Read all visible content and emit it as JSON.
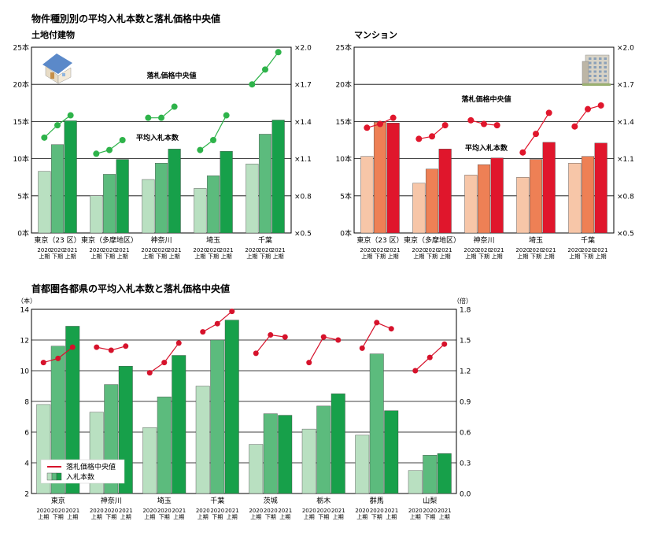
{
  "header": {
    "main_title": "物件種別別の平均入札本数と落札価格中央値",
    "bottom_title": "首都圏各都県の平均入札本数と落札価格中央値"
  },
  "chart_data": [
    {
      "type": "bar",
      "title": "土地付建物",
      "categories": [
        "東京（23 区）",
        "東京（多摩地区）",
        "神奈川",
        "埼玉",
        "千葉"
      ],
      "period_labels": [
        "2020",
        "2020",
        "2021"
      ],
      "period_sublabels": [
        "上期",
        "下期",
        "上期"
      ],
      "left_axis": {
        "unit_suffix": "本",
        "ylim": [
          0,
          25
        ],
        "ticks": [
          0,
          5,
          10,
          15,
          20,
          25
        ]
      },
      "right_axis": {
        "prefix": "×",
        "ylim": [
          0.5,
          2.0
        ],
        "ticks": [
          "0.5",
          "0.8",
          "1.1",
          "1.4",
          "1.7",
          "2.0"
        ]
      },
      "bar_colors": [
        "#b9e0c1",
        "#5cbb7d",
        "#17a04a"
      ],
      "line_color": "#2eb34a",
      "series": [
        {
          "name": "平均入札本数",
          "kind": "bar",
          "values": [
            [
              8.3,
              11.9,
              15.1
            ],
            [
              5.0,
              7.9,
              9.9
            ],
            [
              7.2,
              9.4,
              11.3
            ],
            [
              6.0,
              7.7,
              11.0
            ],
            [
              9.3,
              13.3,
              15.2
            ]
          ]
        },
        {
          "name": "落札価格中央値",
          "kind": "line",
          "values": [
            [
              1.27,
              1.37,
              1.45
            ],
            [
              1.14,
              1.17,
              1.25
            ],
            [
              1.43,
              1.43,
              1.52
            ],
            [
              1.17,
              1.25,
              1.45
            ],
            [
              1.7,
              1.82,
              1.96
            ]
          ]
        }
      ],
      "annotations": [
        "落札価格中央値",
        "平均入札本数"
      ],
      "grid": true
    },
    {
      "type": "bar",
      "title": "マンション",
      "categories": [
        "東京（23 区）",
        "東京（多摩地区）",
        "神奈川",
        "埼玉",
        "千葉"
      ],
      "period_labels": [
        "2020",
        "2020",
        "2021"
      ],
      "period_sublabels": [
        "上期",
        "下期",
        "上期"
      ],
      "left_axis": {
        "unit_suffix": "本",
        "ylim": [
          0,
          25
        ],
        "ticks": [
          0,
          5,
          10,
          15,
          20,
          25
        ]
      },
      "right_axis": {
        "prefix": "×",
        "ylim": [
          0.5,
          2.0
        ],
        "ticks": [
          "0.5",
          "0.8",
          "1.1",
          "1.4",
          "1.7",
          "2.0"
        ]
      },
      "bar_colors": [
        "#f7c6a8",
        "#ee8055",
        "#e0162c"
      ],
      "line_color": "#e0162c",
      "series": [
        {
          "name": "平均入札本数",
          "kind": "bar",
          "values": [
            [
              10.3,
              14.9,
              14.8
            ],
            [
              6.7,
              8.6,
              11.3
            ],
            [
              7.8,
              9.2,
              10.1
            ],
            [
              7.5,
              9.9,
              12.2
            ],
            [
              9.4,
              10.3,
              12.1
            ]
          ]
        },
        {
          "name": "落札価格中央値",
          "kind": "line",
          "values": [
            [
              1.35,
              1.38,
              1.43
            ],
            [
              1.26,
              1.28,
              1.37
            ],
            [
              1.41,
              1.38,
              1.37
            ],
            [
              1.15,
              1.3,
              1.47
            ],
            [
              1.36,
              1.5,
              1.53
            ]
          ]
        }
      ],
      "annotations": [
        "落札価格中央値",
        "平均入札本数"
      ],
      "grid": true
    },
    {
      "type": "bar",
      "title": "首都圏各都県の平均入札本数と落札価格中央値",
      "categories": [
        "東京",
        "神奈川",
        "埼玉",
        "千葉",
        "茨城",
        "栃木",
        "群馬",
        "山梨"
      ],
      "period_labels": [
        "2020",
        "2020",
        "2021"
      ],
      "period_sublabels": [
        "上期",
        "下期",
        "上期"
      ],
      "left_axis": {
        "unit_label": "（本）",
        "ylim": [
          2,
          14
        ],
        "ticks": [
          2,
          4,
          6,
          8,
          10,
          12,
          14
        ]
      },
      "right_axis": {
        "unit_label": "（倍）",
        "ylim": [
          0.0,
          1.8
        ],
        "ticks": [
          "0.0",
          "0.3",
          "0.6",
          "0.9",
          "1.2",
          "1.5",
          "1.8"
        ]
      },
      "bar_colors": [
        "#b9e0c1",
        "#5cbb7d",
        "#17a04a"
      ],
      "line_color": "#d6122b",
      "series": [
        {
          "name": "入札本数",
          "kind": "bar",
          "values": [
            [
              7.8,
              11.6,
              12.9
            ],
            [
              7.3,
              9.1,
              10.3
            ],
            [
              6.3,
              8.3,
              11.0
            ],
            [
              9.0,
              12.0,
              13.3
            ],
            [
              5.2,
              7.2,
              7.1
            ],
            [
              6.2,
              7.7,
              8.5
            ],
            [
              5.8,
              11.1,
              7.4
            ],
            [
              3.5,
              4.5,
              4.6
            ]
          ]
        },
        {
          "name": "落札価格中央値",
          "kind": "line",
          "values": [
            [
              1.28,
              1.32,
              1.43
            ],
            [
              1.43,
              1.4,
              1.44
            ],
            [
              1.18,
              1.28,
              1.47
            ],
            [
              1.58,
              1.66,
              1.78
            ],
            [
              1.37,
              1.55,
              1.53
            ],
            [
              1.28,
              1.53,
              1.5
            ],
            [
              1.42,
              1.67,
              1.61
            ],
            [
              1.2,
              1.33,
              1.46
            ]
          ]
        }
      ],
      "legend": {
        "placement": "bottom-left",
        "items": [
          "落札価格中央値",
          "入札本数"
        ]
      },
      "grid": true
    }
  ]
}
